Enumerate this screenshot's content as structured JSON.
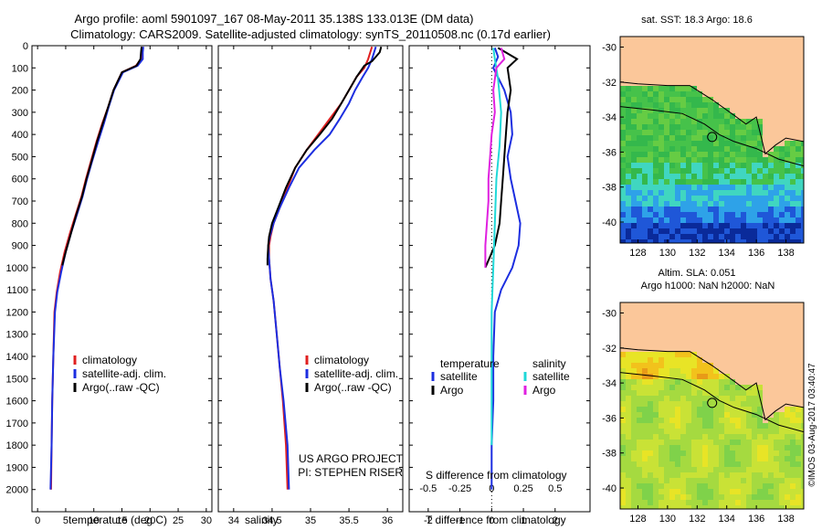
{
  "header": {
    "line1": "Argo profile: aoml 5901097_167 08-May-2011 35.138S 133.013E (DM data)",
    "line2": "Climatology: CARS2009. Satellite-adjusted climatology: synTS_20110508.nc (0.17d earlier)"
  },
  "credit": "©IMOS 03-Aug-2017 03:40:47",
  "chart_data": [
    {
      "id": "temperature",
      "type": "line",
      "xlabel": "temperature (deg C)",
      "ylabel": "",
      "xlim": [
        -1,
        31
      ],
      "ylim": [
        2100,
        0
      ],
      "xticks": [
        0,
        5,
        10,
        15,
        20,
        25,
        30
      ],
      "yticks": [
        0,
        100,
        200,
        300,
        400,
        500,
        600,
        700,
        800,
        900,
        1000,
        1100,
        1200,
        1300,
        1400,
        1500,
        1600,
        1700,
        1800,
        1900,
        2000
      ],
      "legend": {
        "placement": "lower-center",
        "entries": [
          "climatology",
          "satellite-adj. clim.",
          "Argo(..raw -QC)"
        ]
      },
      "series": [
        {
          "name": "climatology",
          "color": "#e02020",
          "points": [
            [
              18.6,
              5
            ],
            [
              18.5,
              30
            ],
            [
              18.4,
              60
            ],
            [
              17.5,
              90
            ],
            [
              15,
              120
            ],
            [
              13.5,
              200
            ],
            [
              12.5,
              280
            ],
            [
              11.5,
              350
            ],
            [
              10.5,
              430
            ],
            [
              9.5,
              520
            ],
            [
              8.6,
              600
            ],
            [
              7.8,
              680
            ],
            [
              6.8,
              760
            ],
            [
              5.8,
              840
            ],
            [
              4.8,
              930
            ],
            [
              4,
              1020
            ],
            [
              3.4,
              1110
            ],
            [
              3,
              1200
            ],
            [
              2.8,
              1400
            ],
            [
              2.6,
              1600
            ],
            [
              2.5,
              1800
            ],
            [
              2.4,
              2000
            ]
          ]
        },
        {
          "name": "satellite-adj. clim.",
          "color": "#1c2ee0",
          "points": [
            [
              18.8,
              5
            ],
            [
              18.7,
              30
            ],
            [
              18.7,
              60
            ],
            [
              17.8,
              90
            ],
            [
              15.2,
              120
            ],
            [
              13.6,
              200
            ],
            [
              12.6,
              280
            ],
            [
              11.8,
              350
            ],
            [
              10.8,
              430
            ],
            [
              9.7,
              520
            ],
            [
              8.8,
              600
            ],
            [
              8,
              680
            ],
            [
              7,
              760
            ],
            [
              6,
              840
            ],
            [
              5,
              930
            ],
            [
              4.2,
              1020
            ],
            [
              3.5,
              1110
            ],
            [
              3.1,
              1200
            ],
            [
              2.8,
              1400
            ],
            [
              2.6,
              1600
            ],
            [
              2.5,
              1800
            ],
            [
              2.3,
              2000
            ]
          ]
        },
        {
          "name": "Argo(..raw -QC)",
          "color": "#000000",
          "points": [
            [
              18.5,
              5
            ],
            [
              18.4,
              30
            ],
            [
              18.3,
              60
            ],
            [
              17.6,
              90
            ],
            [
              15,
              120
            ],
            [
              13.5,
              200
            ],
            [
              12.5,
              280
            ],
            [
              11.6,
              350
            ],
            [
              10.6,
              430
            ],
            [
              9.6,
              520
            ],
            [
              8.7,
              600
            ],
            [
              7.9,
              680
            ],
            [
              6.9,
              760
            ],
            [
              6,
              840
            ],
            [
              5,
              930
            ],
            [
              4.4,
              990
            ]
          ]
        }
      ]
    },
    {
      "id": "salinity",
      "type": "line",
      "xlabel": "salinity",
      "ylabel": "",
      "xlim": [
        33.8,
        36.2
      ],
      "ylim": [
        2100,
        0
      ],
      "xticks": [
        34,
        34.5,
        35,
        35.5,
        36
      ],
      "legend": {
        "placement": "lower-center",
        "entries": [
          "climatology",
          "satellite-adj. clim.",
          "Argo(..raw -QC)"
        ]
      },
      "annotations": [
        "US ARGO PROJECT",
        "PI: STEPHEN RISER"
      ],
      "series": [
        {
          "name": "climatology",
          "color": "#e02020",
          "points": [
            [
              35.8,
              5
            ],
            [
              35.75,
              60
            ],
            [
              35.7,
              100
            ],
            [
              35.6,
              140
            ],
            [
              35.5,
              200
            ],
            [
              35.4,
              260
            ],
            [
              35.25,
              330
            ],
            [
              35.1,
              400
            ],
            [
              34.95,
              470
            ],
            [
              34.8,
              550
            ],
            [
              34.7,
              640
            ],
            [
              34.6,
              730
            ],
            [
              34.52,
              800
            ],
            [
              34.48,
              860
            ],
            [
              34.46,
              900
            ],
            [
              34.46,
              960
            ],
            [
              34.48,
              1050
            ],
            [
              34.52,
              1150
            ],
            [
              34.56,
              1300
            ],
            [
              34.6,
              1450
            ],
            [
              34.64,
              1600
            ],
            [
              34.68,
              1800
            ],
            [
              34.7,
              2000
            ]
          ]
        },
        {
          "name": "satellite-adj. clim.",
          "color": "#1c2ee0",
          "points": [
            [
              35.85,
              5
            ],
            [
              35.8,
              60
            ],
            [
              35.75,
              100
            ],
            [
              35.68,
              140
            ],
            [
              35.58,
              200
            ],
            [
              35.5,
              260
            ],
            [
              35.38,
              330
            ],
            [
              35.25,
              400
            ],
            [
              35.05,
              470
            ],
            [
              34.85,
              550
            ],
            [
              34.72,
              640
            ],
            [
              34.6,
              730
            ],
            [
              34.52,
              800
            ],
            [
              34.47,
              860
            ],
            [
              34.45,
              900
            ],
            [
              34.46,
              960
            ],
            [
              34.48,
              1050
            ],
            [
              34.52,
              1150
            ],
            [
              34.56,
              1300
            ],
            [
              34.6,
              1450
            ],
            [
              34.65,
              1600
            ],
            [
              34.7,
              1800
            ],
            [
              34.72,
              2000
            ]
          ]
        },
        {
          "name": "Argo(..raw -QC)",
          "color": "#000000",
          "points": [
            [
              35.92,
              5
            ],
            [
              35.9,
              30
            ],
            [
              35.8,
              70
            ],
            [
              35.7,
              90
            ],
            [
              35.6,
              140
            ],
            [
              35.5,
              200
            ],
            [
              35.4,
              260
            ],
            [
              35.28,
              330
            ],
            [
              35.12,
              400
            ],
            [
              34.95,
              470
            ],
            [
              34.8,
              550
            ],
            [
              34.68,
              640
            ],
            [
              34.58,
              730
            ],
            [
              34.5,
              800
            ],
            [
              34.46,
              860
            ],
            [
              34.45,
              900
            ],
            [
              34.44,
              960
            ],
            [
              34.44,
              990
            ]
          ]
        }
      ]
    },
    {
      "id": "difference",
      "type": "line",
      "xlabel": "T difference from climatology",
      "xlabel_top": "S difference from climatology",
      "xlim": [
        -2.6,
        3.1
      ],
      "ylim": [
        2100,
        0
      ],
      "xticks": [
        -2,
        -1,
        0,
        1,
        2
      ],
      "xticks_top": [
        -0.5,
        -0.25,
        0,
        0.25,
        0.5
      ],
      "legend": {
        "placement": "lower-center",
        "groups": [
          {
            "title": "temperature",
            "entries": [
              "satellite",
              "Argo"
            ]
          },
          {
            "title": "salinity",
            "entries": [
              "satellite",
              "Argo"
            ]
          }
        ]
      },
      "series": [
        {
          "name": "satellite",
          "group": "temperature",
          "color": "#1c2ee0",
          "points": [
            [
              0.1,
              10
            ],
            [
              0.2,
              50
            ],
            [
              0.05,
              100
            ],
            [
              0.4,
              200
            ],
            [
              0.6,
              300
            ],
            [
              0.65,
              400
            ],
            [
              0.5,
              500
            ],
            [
              0.6,
              600
            ],
            [
              0.75,
              700
            ],
            [
              0.9,
              800
            ],
            [
              0.85,
              900
            ],
            [
              0.65,
              1000
            ],
            [
              0.3,
              1100
            ],
            [
              0.1,
              1200
            ],
            [
              0.05,
              1400
            ],
            [
              0.05,
              1600
            ],
            [
              0.0,
              1800
            ],
            [
              0.0,
              2000
            ]
          ]
        },
        {
          "name": "Argo",
          "group": "temperature",
          "color": "#000000",
          "points": [
            [
              0.2,
              10
            ],
            [
              0.8,
              60
            ],
            [
              0.5,
              100
            ],
            [
              0.6,
              200
            ],
            [
              0.5,
              300
            ],
            [
              0.45,
              400
            ],
            [
              0.4,
              500
            ],
            [
              0.35,
              600
            ],
            [
              0.3,
              700
            ],
            [
              0.25,
              800
            ],
            [
              0.1,
              900
            ],
            [
              -0.2,
              1000
            ]
          ]
        },
        {
          "name": "satellite",
          "group": "salinity",
          "color": "#20d8d8",
          "points": [
            [
              0.05,
              10
            ],
            [
              0.1,
              60
            ],
            [
              0.2,
              150
            ],
            [
              0.3,
              300
            ],
            [
              0.25,
              450
            ],
            [
              0.15,
              600
            ],
            [
              0.1,
              800
            ],
            [
              0.05,
              1000
            ],
            [
              0.0,
              1200
            ],
            [
              0.0,
              1600
            ],
            [
              0.0,
              1800
            ]
          ]
        },
        {
          "name": "Argo",
          "group": "salinity",
          "color": "#e020e0",
          "points": [
            [
              0.3,
              10
            ],
            [
              0.4,
              60
            ],
            [
              0.15,
              100
            ],
            [
              0.05,
              200
            ],
            [
              0.1,
              300
            ],
            [
              0.0,
              400
            ],
            [
              -0.05,
              500
            ],
            [
              -0.1,
              600
            ],
            [
              -0.1,
              700
            ],
            [
              -0.15,
              800
            ],
            [
              -0.2,
              900
            ],
            [
              -0.2,
              1000
            ]
          ]
        }
      ]
    },
    {
      "id": "sst-map",
      "type": "heatmap",
      "title": "sat. SST: 18.3  Argo: 18.6",
      "xlim": [
        126.8,
        139.2
      ],
      "ylim": [
        -41.2,
        -29.4
      ],
      "xticks": [
        128,
        130,
        132,
        134,
        136,
        138
      ],
      "yticks": [
        -30,
        -32,
        -34,
        -36,
        -38,
        -40
      ],
      "argo_location": [
        133.013,
        -35.138
      ]
    },
    {
      "id": "sla-map",
      "type": "heatmap",
      "title": "Altim. SLA: 0.051",
      "subtitle": "Argo h1000: NaN  h2000: NaN",
      "xlim": [
        126.8,
        139.2
      ],
      "ylim": [
        -41.2,
        -29.4
      ],
      "xticks": [
        128,
        130,
        132,
        134,
        136,
        138
      ],
      "yticks": [
        -30,
        -32,
        -34,
        -36,
        -38,
        -40
      ],
      "argo_location": [
        133.013,
        -35.138
      ]
    }
  ],
  "colors": {
    "land": "#fbc79a",
    "sst_palette": [
      "#0a2a9a",
      "#1f57d8",
      "#2ea2e8",
      "#40d6c0",
      "#34b84c",
      "#46c24a",
      "#66cc44",
      "#8fd640"
    ],
    "sla_palette": [
      "#7fd24a",
      "#a5da40",
      "#c9e236",
      "#e8e426",
      "#f2c21c",
      "#e89a18"
    ]
  }
}
